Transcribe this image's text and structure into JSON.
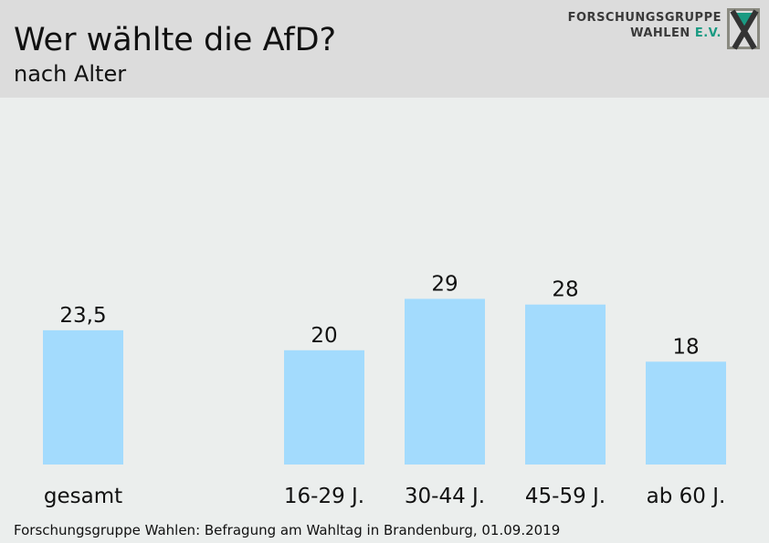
{
  "header": {
    "title": "Wer wählte die AfD?",
    "subtitle": "nach Alter",
    "logo_line1": "FORSCHUNGSGRUPPE",
    "logo_line2": "WAHLEN",
    "logo_ev": "E.V."
  },
  "source": "Forschungsgruppe Wahlen: Befragung am Wahltag in Brandenburg, 01.09.2019",
  "chart_data": {
    "type": "bar",
    "title": "Wer wählte die AfD?",
    "subtitle": "nach Alter",
    "categories": [
      "gesamt",
      "16-29 J.",
      "30-44 J.",
      "45-59 J.",
      "ab 60 J."
    ],
    "values": [
      23.5,
      20,
      29,
      28,
      18
    ],
    "value_labels": [
      "23,5",
      "20",
      "29",
      "28",
      "18"
    ],
    "bar_color": "#a3dbfd",
    "grid": false
  }
}
